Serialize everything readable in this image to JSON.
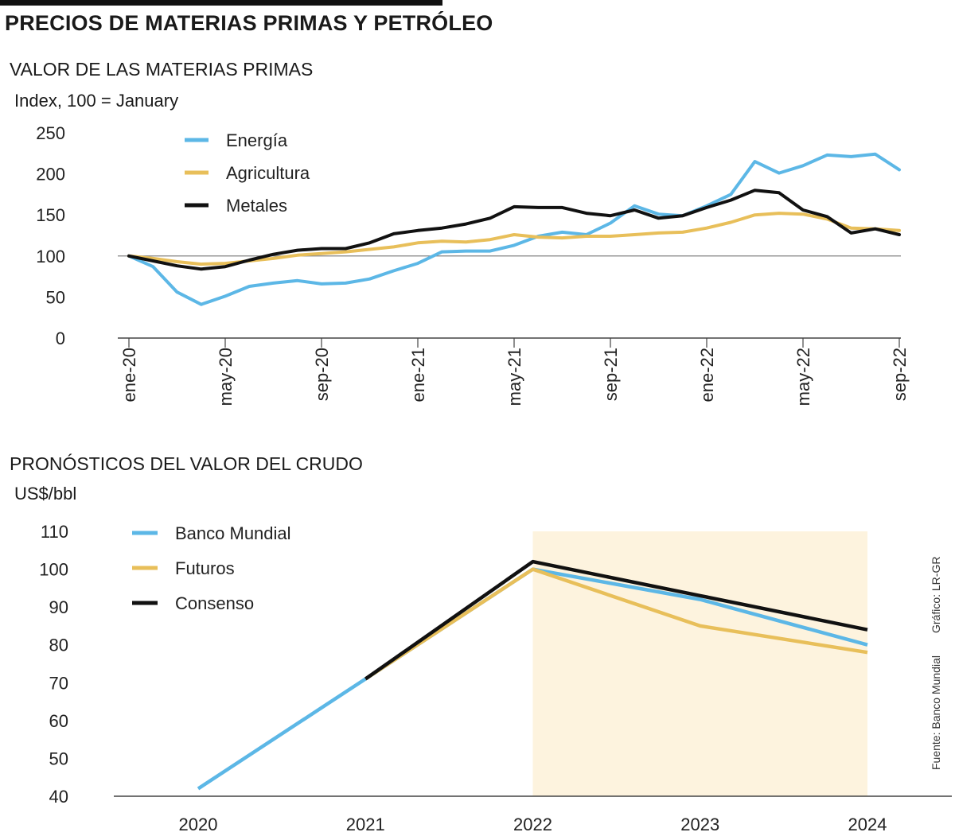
{
  "header": {
    "title": "PRECIOS DE MATERIAS PRIMAS Y PETRÓLEO"
  },
  "chart_data": [
    {
      "type": "line",
      "title": "VALOR DE LAS MATERIAS PRIMAS",
      "ylabel": "Index, 100 = January",
      "xlabel": "",
      "ylim": [
        0,
        250
      ],
      "yticks": [
        0,
        50,
        100,
        150,
        200,
        250
      ],
      "categories": [
        "ene-20",
        "feb-20",
        "mar-20",
        "abr-20",
        "may-20",
        "jun-20",
        "jul-20",
        "ago-20",
        "sep-20",
        "oct-20",
        "nov-20",
        "dic-20",
        "ene-21",
        "feb-21",
        "mar-21",
        "abr-21",
        "may-21",
        "jun-21",
        "jul-21",
        "ago-21",
        "sep-21",
        "oct-21",
        "nov-21",
        "dic-21",
        "ene-22",
        "feb-22",
        "mar-22",
        "abr-22",
        "may-22",
        "jun-22",
        "jul-22",
        "ago-22",
        "sep-22"
      ],
      "tick_labels": [
        "ene-20",
        "may-20",
        "sep-20",
        "ene-21",
        "may-21",
        "sep-21",
        "ene-22",
        "may-22",
        "sep-22"
      ],
      "legend_position": "top-left",
      "reference_line": 100,
      "series": [
        {
          "name": "Energía",
          "color": "#5cb7e6",
          "values": [
            100,
            87,
            56,
            41,
            51,
            63,
            67,
            70,
            66,
            67,
            72,
            82,
            91,
            105,
            106,
            106,
            113,
            124,
            129,
            126,
            140,
            161,
            151,
            149,
            161,
            175,
            215,
            201,
            210,
            223,
            221,
            224,
            205
          ]
        },
        {
          "name": "Agricultura",
          "color": "#e8bf5a",
          "values": [
            100,
            97,
            93,
            90,
            91,
            94,
            97,
            101,
            103,
            105,
            108,
            111,
            116,
            118,
            117,
            120,
            126,
            123,
            122,
            124,
            124,
            126,
            128,
            129,
            134,
            141,
            150,
            152,
            151,
            145,
            134,
            133,
            131
          ]
        },
        {
          "name": "Metales",
          "color": "#111111",
          "values": [
            100,
            94,
            88,
            84,
            87,
            95,
            102,
            107,
            109,
            109,
            116,
            127,
            131,
            134,
            139,
            146,
            160,
            159,
            159,
            152,
            149,
            156,
            146,
            149,
            159,
            168,
            180,
            177,
            156,
            148,
            128,
            133,
            126
          ]
        }
      ]
    },
    {
      "type": "line",
      "title": "PRONÓSTICOS DEL VALOR DEL CRUDO",
      "ylabel": "US$/bbl",
      "xlabel": "",
      "ylim": [
        40,
        110
      ],
      "yticks": [
        40,
        50,
        60,
        70,
        80,
        90,
        100,
        110
      ],
      "categories": [
        "2020",
        "2021",
        "2022",
        "2023",
        "2024"
      ],
      "legend_position": "top-left",
      "forecast_shading": {
        "from": "2022",
        "to": "2024",
        "color": "#fdf3de"
      },
      "series": [
        {
          "name": "Banco Mundial",
          "color": "#5cb7e6",
          "values": [
            42,
            71,
            100,
            92,
            80
          ]
        },
        {
          "name": "Futuros",
          "color": "#e8bf5a",
          "values": [
            null,
            71,
            100,
            85,
            78
          ]
        },
        {
          "name": "Consenso",
          "color": "#111111",
          "values": [
            null,
            71,
            102,
            93,
            84
          ]
        }
      ]
    }
  ],
  "credits": {
    "source": "Fuente: Banco Mundial",
    "graphic": "Gráfico: LR-GR"
  }
}
